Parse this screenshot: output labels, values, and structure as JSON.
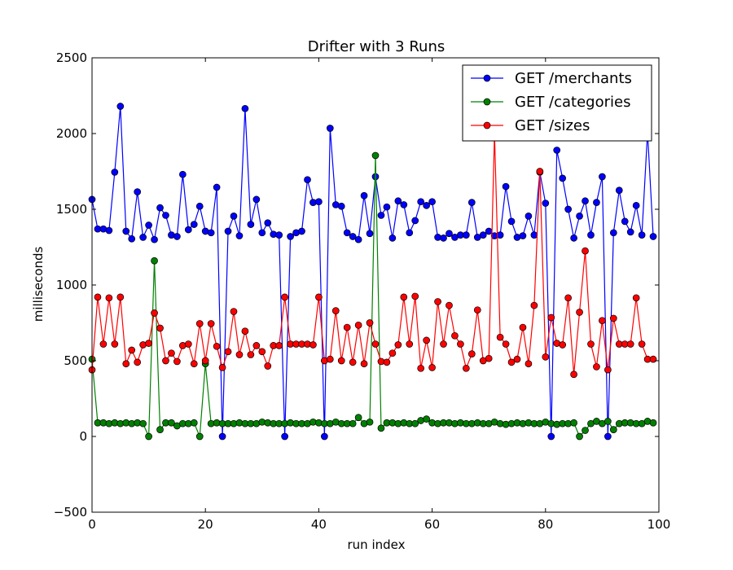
{
  "chart_data": {
    "type": "line",
    "title": "Drifter with 3 Runs",
    "xlabel": "run index",
    "ylabel": "milliseconds",
    "xlim": [
      0,
      100
    ],
    "ylim": [
      -500,
      2500
    ],
    "xticks": [
      0,
      20,
      40,
      60,
      80,
      100
    ],
    "yticks": [
      -500,
      0,
      500,
      1000,
      1500,
      2000,
      2500
    ],
    "ytick_labels": [
      "−500",
      "0",
      "500",
      "1000",
      "1500",
      "2000",
      "2500"
    ],
    "grid": false,
    "legend_position": "top-right",
    "series": [
      {
        "name": "GET /merchants",
        "color": "#0000ff",
        "values": [
          1565,
          1370,
          1370,
          1360,
          1745,
          2180,
          1355,
          1305,
          1615,
          1315,
          1395,
          1300,
          1510,
          1460,
          1330,
          1320,
          1730,
          1365,
          1400,
          1520,
          1355,
          1345,
          1645,
          0,
          1355,
          1455,
          1325,
          2165,
          1400,
          1565,
          1345,
          1410,
          1335,
          1330,
          0,
          1320,
          1345,
          1355,
          1695,
          1545,
          1550,
          0,
          2035,
          1530,
          1520,
          1345,
          1320,
          1300,
          1590,
          1340,
          1715,
          1460,
          1515,
          1310,
          1555,
          1530,
          1345,
          1425,
          1550,
          1525,
          1550,
          1315,
          1310,
          1340,
          1315,
          1330,
          1330,
          1545,
          1315,
          1330,
          1355,
          1325,
          1330,
          1650,
          1420,
          1315,
          1325,
          1455,
          1330,
          1745,
          1540,
          0,
          1890,
          1705,
          1500,
          1310,
          1455,
          1555,
          1330,
          1545,
          1715,
          0,
          1345,
          1625,
          1420,
          1350,
          1525,
          1330,
          2010,
          1320
        ]
      },
      {
        "name": "GET /categories",
        "color": "#008000",
        "values": [
          510,
          90,
          90,
          85,
          90,
          85,
          90,
          85,
          90,
          85,
          0,
          1160,
          45,
          90,
          90,
          70,
          85,
          85,
          90,
          0,
          480,
          85,
          90,
          85,
          85,
          85,
          90,
          85,
          85,
          85,
          95,
          90,
          85,
          85,
          85,
          90,
          85,
          85,
          85,
          95,
          90,
          85,
          85,
          95,
          85,
          85,
          85,
          125,
          85,
          95,
          1855,
          55,
          90,
          90,
          85,
          90,
          85,
          85,
          105,
          115,
          90,
          85,
          90,
          90,
          85,
          90,
          85,
          85,
          90,
          85,
          85,
          95,
          85,
          80,
          85,
          90,
          85,
          90,
          85,
          85,
          95,
          85,
          80,
          85,
          85,
          90,
          0,
          40,
          85,
          100,
          85,
          100,
          45,
          85,
          90,
          90,
          85,
          85,
          100,
          90
        ]
      },
      {
        "name": "GET /sizes",
        "color": "#ff0000",
        "values": [
          440,
          920,
          610,
          915,
          610,
          920,
          480,
          570,
          490,
          605,
          615,
          815,
          715,
          500,
          550,
          495,
          600,
          610,
          480,
          745,
          500,
          745,
          595,
          455,
          560,
          825,
          540,
          695,
          540,
          600,
          560,
          465,
          600,
          600,
          920,
          610,
          610,
          610,
          610,
          605,
          920,
          500,
          510,
          830,
          500,
          720,
          490,
          735,
          480,
          750,
          610,
          495,
          490,
          550,
          605,
          920,
          610,
          925,
          450,
          635,
          455,
          890,
          610,
          865,
          665,
          610,
          450,
          545,
          835,
          500,
          515,
          2000,
          655,
          610,
          490,
          510,
          720,
          480,
          865,
          1750,
          525,
          785,
          615,
          605,
          915,
          410,
          820,
          1225,
          610,
          460,
          765,
          440,
          780,
          610,
          610,
          610,
          915,
          610,
          510,
          510
        ]
      }
    ]
  }
}
